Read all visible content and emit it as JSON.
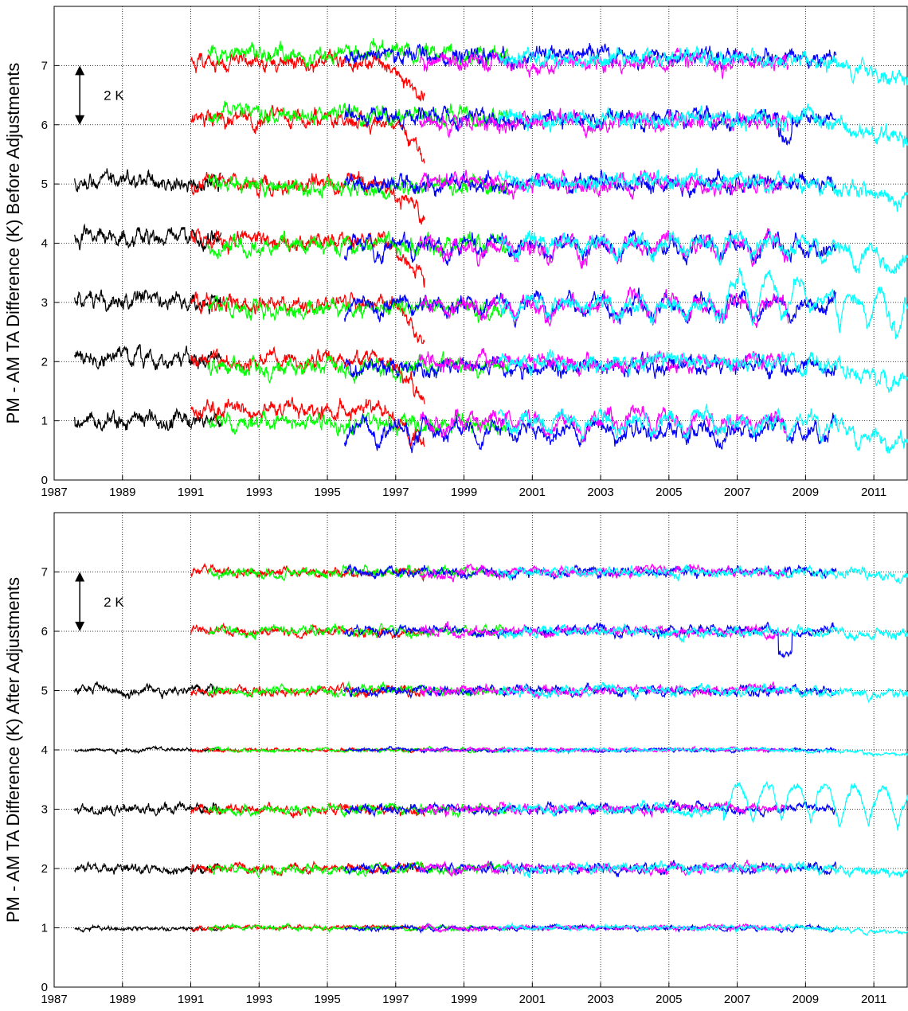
{
  "chart_data": [
    {
      "type": "line",
      "ylabel": "PM - AM TA Difference (K) Before Adjustments",
      "xlim": [
        1987,
        2012
      ],
      "ylim": [
        0,
        8
      ],
      "xticks": [
        "1987",
        "1989",
        "1991",
        "1993",
        "1995",
        "1997",
        "1999",
        "2001",
        "2003",
        "2005",
        "2007",
        "2009",
        "2011"
      ],
      "yticks": [
        "0",
        "1",
        "2",
        "3",
        "4",
        "5",
        "6",
        "7"
      ],
      "grid": true,
      "scale_annotation": "2 K",
      "channel_offsets": [
        1,
        2,
        3,
        4,
        5,
        6,
        7
      ],
      "series": [
        {
          "color": "#000000",
          "start": 1987.6,
          "end": 1991.9,
          "channels": [
            1,
            2,
            3,
            4,
            5
          ]
        },
        {
          "color": "#ff0000",
          "start": 1991.0,
          "end": 1997.85,
          "channels": [
            1,
            2,
            3,
            4,
            5,
            6,
            7
          ]
        },
        {
          "color": "#00ff00",
          "start": 1991.5,
          "end": 2000.3,
          "channels": [
            1,
            2,
            3,
            4,
            5,
            6,
            7
          ]
        },
        {
          "color": "#0000ff",
          "start": 1995.5,
          "end": 2009.9,
          "channels": [
            1,
            2,
            3,
            4,
            5,
            6,
            7
          ]
        },
        {
          "color": "#ff00ff",
          "start": 1997.7,
          "end": 2008.5,
          "channels": [
            1,
            2,
            3,
            4,
            5,
            6,
            7
          ]
        },
        {
          "color": "#00ffff",
          "start": 2000.0,
          "end": 2012.0,
          "channels": [
            1,
            2,
            3,
            4,
            5,
            6,
            7
          ]
        }
      ]
    },
    {
      "type": "line",
      "ylabel": "PM - AM TA Difference (K) After Adjustments",
      "xlim": [
        1987,
        2012
      ],
      "ylim": [
        0,
        8
      ],
      "xticks": [
        "1987",
        "1989",
        "1991",
        "1993",
        "1995",
        "1997",
        "1999",
        "2001",
        "2003",
        "2005",
        "2007",
        "2009",
        "2011"
      ],
      "yticks": [
        "0",
        "1",
        "2",
        "3",
        "4",
        "5",
        "6",
        "7"
      ],
      "grid": true,
      "scale_annotation": "2 K",
      "channel_offsets": [
        1,
        2,
        3,
        4,
        5,
        6,
        7
      ],
      "series": [
        {
          "color": "#000000",
          "start": 1987.6,
          "end": 1991.9,
          "channels": [
            1,
            2,
            3,
            4,
            5
          ]
        },
        {
          "color": "#ff0000",
          "start": 1991.0,
          "end": 1997.85,
          "channels": [
            1,
            2,
            3,
            4,
            5,
            6,
            7
          ]
        },
        {
          "color": "#00ff00",
          "start": 1991.5,
          "end": 2000.3,
          "channels": [
            1,
            2,
            3,
            4,
            5,
            6,
            7
          ]
        },
        {
          "color": "#0000ff",
          "start": 1995.5,
          "end": 2009.9,
          "channels": [
            1,
            2,
            3,
            4,
            5,
            6,
            7
          ]
        },
        {
          "color": "#ff00ff",
          "start": 1997.7,
          "end": 2008.5,
          "channels": [
            1,
            2,
            3,
            4,
            5,
            6,
            7
          ]
        },
        {
          "color": "#00ffff",
          "start": 2000.0,
          "end": 2012.0,
          "channels": [
            1,
            2,
            3,
            4,
            5,
            6,
            7
          ]
        }
      ]
    }
  ]
}
